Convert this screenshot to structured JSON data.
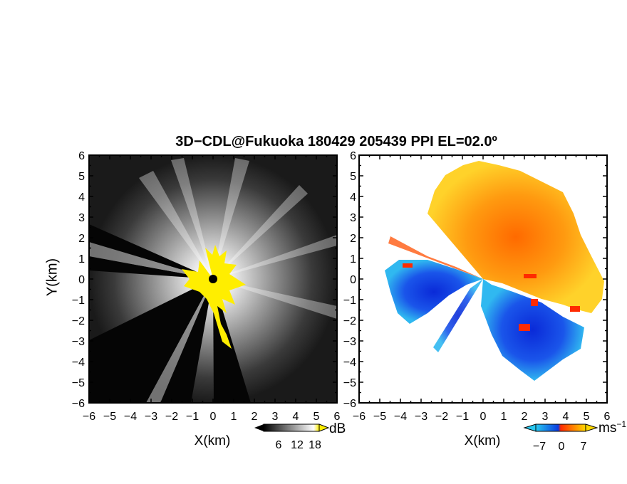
{
  "title": "3D−CDL@Fukuoka 180429 205439 PPI EL=02.0º",
  "chart_data": [
    {
      "type": "heatmap",
      "name": "reflectivity",
      "xlabel": "X(km)",
      "ylabel": "Y(km)",
      "xlim": [
        -6,
        6
      ],
      "ylim": [
        -6,
        6
      ],
      "xticks": [
        "−6",
        "−5",
        "−4",
        "−3",
        "−2",
        "−1",
        "0",
        "1",
        "2",
        "3",
        "4",
        "5",
        "6"
      ],
      "yticks": [
        "6",
        "5",
        "4",
        "3",
        "2",
        "1",
        "0",
        "−1",
        "−2",
        "−3",
        "−4",
        "−5",
        "−6"
      ],
      "colorbar": {
        "ticks": [
          "6",
          "12",
          "18"
        ],
        "unit": "dB",
        "colors": [
          "#000000",
          "#ffffff",
          "#ffee00"
        ]
      }
    },
    {
      "type": "heatmap",
      "name": "doppler-velocity",
      "xlabel": "X(km)",
      "xlim": [
        -6,
        6
      ],
      "ylim": [
        -6,
        6
      ],
      "xticks": [
        "−6",
        "−5",
        "−4",
        "−3",
        "−2",
        "−1",
        "0",
        "1",
        "2",
        "3",
        "4",
        "5",
        "6"
      ],
      "yticks": [
        "6",
        "5",
        "4",
        "3",
        "2",
        "1",
        "0",
        "−1",
        "−2",
        "−3",
        "−4",
        "−5",
        "−6"
      ],
      "colorbar": {
        "ticks": [
          "−7",
          "0",
          "7"
        ],
        "unit": "ms",
        "unit_exp": "−1",
        "colors": [
          "#28c8f0",
          "#0a3ce0",
          "#ff2a00",
          "#ffd800"
        ]
      }
    }
  ]
}
